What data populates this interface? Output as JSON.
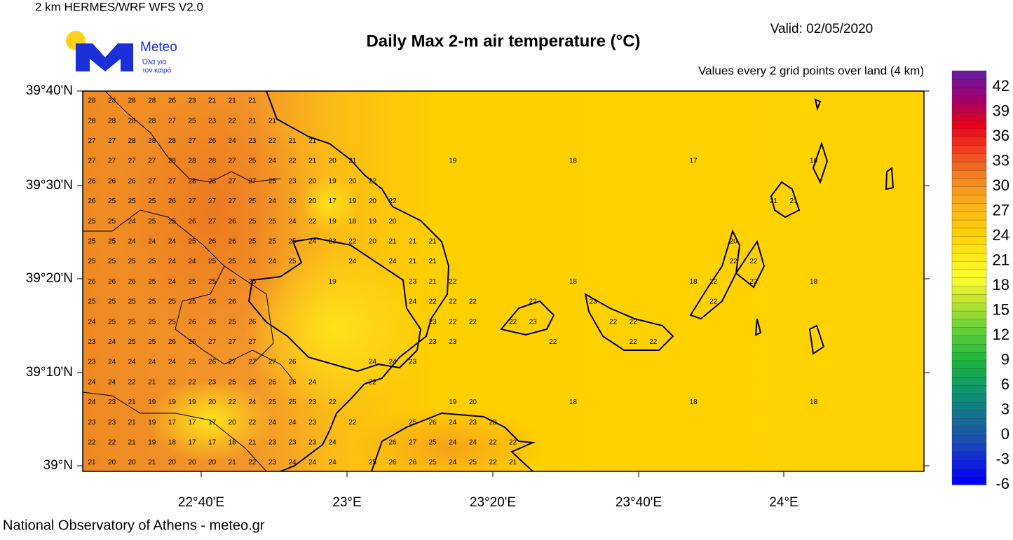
{
  "header": {
    "model": "2 km HERMES/WRF WFS V2.0",
    "title": "Daily Max 2-m air temperature (°C)",
    "valid": "Valid: 02/05/2020",
    "subtitle": "Values every 2 grid points over land (4 km)",
    "logo": {
      "name": "Meteo",
      "tagline1": "Όλα για",
      "tagline2": "τον καιρό"
    }
  },
  "map": {
    "lat_labels": [
      "39°40'N",
      "39°30'N",
      "39°20'N",
      "39°10'N",
      "39°N"
    ],
    "lon_labels": [
      "22°40'E",
      "23°E",
      "23°20'E",
      "23°40'E",
      "24°E"
    ]
  },
  "grid": {
    "rows": [
      [
        28,
        28,
        28,
        28,
        26,
        23,
        21,
        21,
        21
      ],
      [
        28,
        28,
        28,
        28,
        27,
        25,
        23,
        22,
        21,
        21
      ],
      [
        27,
        27,
        28,
        28,
        28,
        27,
        26,
        24,
        23,
        22,
        21,
        21
      ],
      [
        27,
        27,
        27,
        27,
        28,
        28,
        28,
        27,
        25,
        24,
        22,
        21,
        20,
        21,
        null,
        null,
        null,
        null,
        19,
        null,
        null,
        null,
        null,
        null,
        18,
        null,
        null,
        null,
        null,
        null,
        17,
        null,
        null,
        null,
        null,
        null,
        18
      ],
      [
        26,
        26,
        26,
        27,
        27,
        28,
        28,
        27,
        27,
        25,
        23,
        20,
        19,
        20,
        22
      ],
      [
        26,
        25,
        25,
        25,
        26,
        27,
        27,
        27,
        25,
        24,
        23,
        20,
        17,
        19,
        20,
        22,
        null,
        null,
        null,
        null,
        null,
        null,
        null,
        null,
        null,
        null,
        null,
        null,
        null,
        null,
        null,
        null,
        null,
        null,
        21,
        21
      ],
      [
        25,
        25,
        24,
        25,
        25,
        26,
        27,
        26,
        25,
        25,
        24,
        22,
        19,
        18,
        19,
        20
      ],
      [
        25,
        25,
        24,
        24,
        24,
        25,
        26,
        26,
        25,
        25,
        25,
        24,
        23,
        22,
        20,
        21,
        21,
        21,
        null,
        null,
        null,
        null,
        null,
        null,
        null,
        null,
        null,
        null,
        null,
        null,
        null,
        null,
        20
      ],
      [
        25,
        25,
        25,
        25,
        24,
        24,
        25,
        25,
        24,
        24,
        25,
        null,
        null,
        24,
        null,
        24,
        21,
        21,
        null,
        null,
        null,
        null,
        null,
        null,
        null,
        null,
        null,
        null,
        null,
        null,
        null,
        null,
        22,
        22
      ],
      [
        26,
        26,
        26,
        25,
        24,
        25,
        25,
        25,
        25,
        null,
        null,
        null,
        19,
        null,
        null,
        null,
        23,
        21,
        22,
        null,
        null,
        null,
        null,
        null,
        18,
        null,
        null,
        null,
        null,
        null,
        18,
        22,
        null,
        23,
        null,
        null,
        18
      ],
      [
        25,
        25,
        25,
        25,
        25,
        25,
        26,
        26,
        null,
        null,
        null,
        null,
        null,
        null,
        null,
        null,
        24,
        22,
        22,
        22,
        null,
        null,
        22,
        null,
        null,
        23,
        null,
        null,
        null,
        null,
        null,
        22
      ],
      [
        24,
        25,
        25,
        25,
        25,
        26,
        26,
        25,
        26,
        null,
        null,
        null,
        null,
        null,
        null,
        null,
        null,
        23,
        22,
        22,
        null,
        22,
        23,
        null,
        null,
        null,
        22,
        22
      ],
      [
        23,
        24,
        25,
        25,
        26,
        26,
        27,
        27,
        27,
        null,
        null,
        null,
        null,
        null,
        null,
        null,
        null,
        23,
        23,
        null,
        null,
        null,
        null,
        22,
        null,
        null,
        null,
        22,
        22
      ],
      [
        23,
        24,
        24,
        24,
        24,
        25,
        26,
        27,
        27,
        27,
        26,
        null,
        null,
        null,
        24,
        24,
        23
      ],
      [
        24,
        24,
        22,
        21,
        22,
        22,
        23,
        25,
        25,
        26,
        26,
        24,
        null,
        null,
        22
      ],
      [
        24,
        23,
        21,
        19,
        19,
        19,
        20,
        22,
        24,
        25,
        25,
        23,
        22,
        null,
        null,
        null,
        null,
        null,
        19,
        20,
        null,
        null,
        null,
        null,
        18,
        null,
        null,
        null,
        null,
        null,
        18,
        null,
        null,
        null,
        null,
        null,
        18
      ],
      [
        23,
        23,
        21,
        19,
        17,
        17,
        17,
        20,
        22,
        24,
        24,
        23,
        null,
        22,
        null,
        null,
        25,
        26,
        24,
        23,
        23
      ],
      [
        22,
        22,
        21,
        19,
        18,
        17,
        17,
        18,
        21,
        23,
        23,
        23,
        24,
        null,
        null,
        26,
        27,
        25,
        24,
        24,
        22,
        22
      ],
      [
        21,
        20,
        20,
        21,
        20,
        20,
        20,
        21,
        22,
        23,
        24,
        24,
        24,
        null,
        25,
        26,
        26,
        25,
        24,
        25,
        22,
        21
      ]
    ]
  },
  "colorbar": {
    "ticks": [
      42,
      39,
      36,
      33,
      30,
      27,
      24,
      21,
      18,
      15,
      12,
      9,
      6,
      3,
      0,
      -3,
      -6
    ]
  },
  "footer": "National Observatory of Athens - meteo.gr"
}
